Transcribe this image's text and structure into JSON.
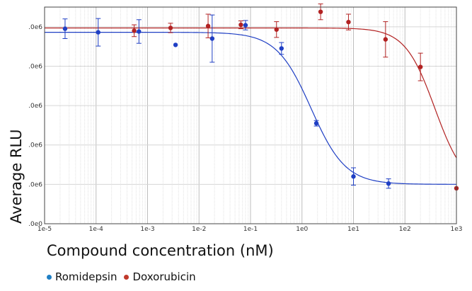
{
  "chart_data": {
    "type": "scatter",
    "title": "",
    "xlabel": "Compound concentration (nM)",
    "ylabel": "Average RLU",
    "x_scale": "log",
    "xlim": [
      1e-05,
      1000
    ],
    "ylim": [
      0,
      5.5
    ],
    "x_ticks": [
      "1e-5",
      "1e-4",
      "1e-3",
      "1e-2",
      "1e-1",
      "1e0",
      "1e1",
      "1e2",
      "1e3"
    ],
    "x_tick_values": [
      1e-05,
      0.0001,
      0.001,
      0.01,
      0.1,
      1,
      10,
      100,
      1000
    ],
    "y_ticks": [
      ".0e6",
      ".0e6",
      ".0e6",
      ".0e6",
      ".0e6",
      ".0e0"
    ],
    "y_tick_values": [
      5,
      4,
      3,
      2,
      1,
      0
    ],
    "grid": true,
    "legend_position": "bottom-left",
    "series": [
      {
        "name": "Romidepsin",
        "color": "#1f3fc4",
        "fit": {
          "top": 4.86,
          "bottom": 1.0,
          "ec50": 1.5,
          "hill": 1.3
        },
        "points": [
          {
            "x": 2.5e-05,
            "y": 4.95,
            "err": 0.25
          },
          {
            "x": 0.00011,
            "y": 4.86,
            "err": 0.35
          },
          {
            "x": 0.00068,
            "y": 4.88,
            "err": 0.3
          },
          {
            "x": 0.0035,
            "y": 4.54,
            "err": 0
          },
          {
            "x": 0.018,
            "y": 4.7,
            "err": 0.6
          },
          {
            "x": 0.08,
            "y": 5.04,
            "err": 0.12
          },
          {
            "x": 0.4,
            "y": 4.45,
            "err": 0.15
          },
          {
            "x": 1.9,
            "y": 2.55,
            "err": 0.07
          },
          {
            "x": 10,
            "y": 1.2,
            "err": 0.22
          },
          {
            "x": 48,
            "y": 1.02,
            "err": 0.12
          }
        ]
      },
      {
        "name": "Doxorubicin",
        "color": "#b22222",
        "fit": {
          "top": 4.97,
          "bottom": 0.9,
          "ec50": 380,
          "hill": 1.5
        },
        "points": [
          {
            "x": 0.00055,
            "y": 4.9,
            "err": 0.15
          },
          {
            "x": 0.0028,
            "y": 4.97,
            "err": 0.12
          },
          {
            "x": 0.015,
            "y": 5.02,
            "err": 0.3
          },
          {
            "x": 0.065,
            "y": 5.05,
            "err": 0.1
          },
          {
            "x": 0.32,
            "y": 4.93,
            "err": 0.2
          },
          {
            "x": 2.3,
            "y": 5.38,
            "err": 0.2
          },
          {
            "x": 8,
            "y": 5.12,
            "err": 0.2
          },
          {
            "x": 42,
            "y": 4.68,
            "err": 0.45
          },
          {
            "x": 200,
            "y": 3.98,
            "err": 0.35
          },
          {
            "x": 1000,
            "y": 0.9,
            "err": 0
          }
        ]
      }
    ]
  }
}
